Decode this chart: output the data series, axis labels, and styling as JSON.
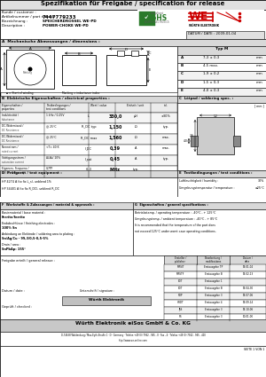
{
  "title": "Spezifikation für Freigabe / specification for release",
  "part_number": "7447779233",
  "customer_label": "Kunde / customer :",
  "part_number_label": "Artikelnummer / part number :",
  "desc_de_label": "Bezeichnung :",
  "desc_en_label": "Description :",
  "desc_de_val": "SPEICHERDROSSEL WE-PD",
  "desc_en_val": "POWER-CHOKE WE-PD",
  "date_label": "DATUM / DATE : 2009-01-04",
  "section_a": "A  Mechanische Abmessungen / dimensions :",
  "typ_label": "Typ M",
  "dim_rows": [
    [
      "A",
      "7,3 ± 0,3",
      "mm"
    ],
    [
      "B",
      "4,5 max.",
      "mm"
    ],
    [
      "C",
      "1,9 ± 0,2",
      "mm"
    ],
    [
      "D",
      "1,5 ± 0,3",
      "mm"
    ],
    [
      "E",
      "4,0 ± 0,3",
      "mm"
    ]
  ],
  "section_b": "B  Elektrische Eigenschaften / electrical properties :",
  "section_c": "C  Lötpad / soldering spec. :",
  "b_header": [
    "Eigenschaften /\nproperties",
    "Testbedingungen /\ntest conditions",
    "",
    "Wert / value",
    "Einheit / unit",
    "tol."
  ],
  "b_rows": [
    [
      "Induktivität /\nInductance",
      "1 kHz / 0,25V",
      "L",
      "330,0",
      "µH",
      "±30%"
    ],
    [
      "DC-Widerstand /\nDC Resistance",
      "@ 25°C",
      "R_DC typ",
      "1,150",
      "Ω",
      "typ."
    ],
    [
      "DC-Widerstand /\nDC Resistance",
      "@ 25°C",
      "R_DC max",
      "1,560",
      "Ω",
      "max."
    ],
    [
      "Nennstrom /\nrated current",
      "<T= 40 K",
      "I_DC",
      "0,39",
      "A",
      "max."
    ],
    [
      "Sättigungsstrom /\nsaturation current",
      "ΔLAL/ 10%",
      "I_sat",
      "0,45",
      "A",
      "typ."
    ],
    [
      "Eigenres. Frequenz /\nself res. frequency",
      "0,7PF",
      "-6,3",
      "MHz",
      "typ.",
      ""
    ]
  ],
  "section_d": "D  Prüfgerät / test equipment :",
  "section_e": "E  Testbedingungen / test conditions :",
  "d_lines": [
    "HP 4274 A (to fix L_s), unblend 1%",
    "HP 34401 A (to fix R_DC), unblend R_DC"
  ],
  "e_lines": [
    [
      "Luftfeuchtigkeit / humidity :",
      "30%"
    ],
    [
      "Umgebungstemperatur / temperature :",
      "≤25°C"
    ]
  ],
  "section_f": "F  Werkstoffe & Zulassungen / material & approvals :",
  "f_lines": [
    [
      "Basismaterial / base material :",
      "Ferrite/ferrite"
    ],
    [
      "Endabschlüsse / finishing electrodes :",
      "100% Sn"
    ],
    [
      "Anbindung an Elektrode / soldering area to plating :",
      "Sn/Ag/Cu - 99,3/0,5-0,5-5%"
    ],
    [
      "Drain / area :",
      "SnPbAp: 155°"
    ]
  ],
  "section_g": "G  Eigenschaften / general specifications :",
  "g_lines": [
    "Betriebstemp. / operating temperature : -40°C - + 125°C",
    "Umgebungstemp. / ambient temperature : -40°C - + 85°C",
    "It is recommended that the temperature of the part does",
    "not exceed 125°C under worst case operating conditions."
  ],
  "release_label": "Freigabe erteilt / general release :",
  "date_sign_label": "Datum / date :",
  "checked_label": "Geprüft / checked :",
  "sign_label": "Unterschrift / signature :",
  "sign_name": "Würth Elektronik",
  "release_col_headers": [
    "Ersteller /\npublisher",
    "Bearbeitung /\nmodifications",
    "Datum /\ndate"
  ],
  "release_rows": [
    [
      "MRSIT",
      "Erstausgabe TP",
      "09-01-04"
    ],
    [
      "MRSTF",
      "Erstausgabe B",
      "09-02-13"
    ],
    [
      "PDT",
      "Erstausgabe 1",
      ""
    ],
    [
      "PDT",
      "Erstausgabe B",
      "09-04-30"
    ],
    [
      "RDP",
      "Erstausgabe 3",
      "09-07-06"
    ],
    [
      "HRDT",
      "Erstausgabe 4",
      "09-09-14"
    ],
    [
      "JRS",
      "Erstausgabe 3",
      "09-10-06"
    ],
    [
      "RS",
      "Erstausgabe 3",
      "10-01-00"
    ]
  ],
  "footer_company": "Würth Elektronik eiSos GmbH & Co. KG",
  "footer_addr": "D-74638 Waldenburg / Max-Eyth-Straße 1 · D · Germany · Telefon +49 (0) 7942 - 945 - 0 · Fax - 4 · Telefax +49 (0) 7942 - 945 - 400",
  "footer_web": "http://www.we-online.com",
  "page_label": "SEITE 1 VON 1",
  "bg_color": "#ffffff"
}
